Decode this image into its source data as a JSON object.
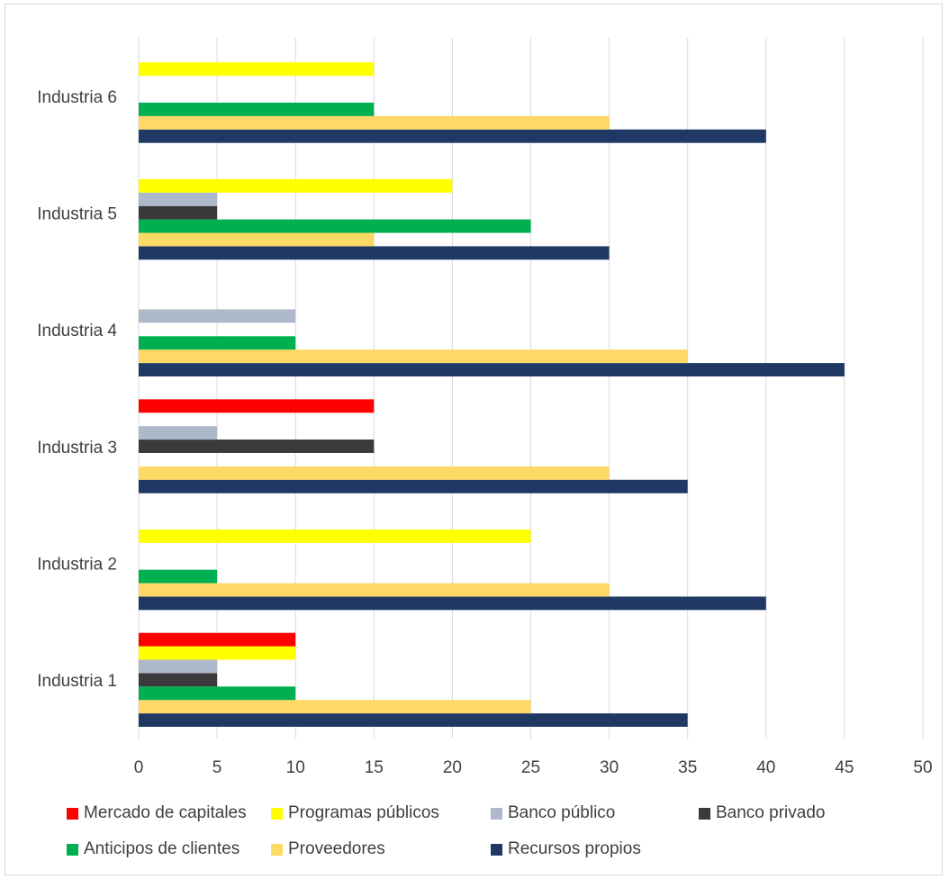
{
  "chart_data": {
    "type": "bar",
    "orientation": "horizontal",
    "categories": [
      "Industria 1",
      "Industria 2",
      "Industria 3",
      "Industria 4",
      "Industria 5",
      "Industria 6"
    ],
    "series": [
      {
        "name": "Recursos propios",
        "color": "#203864",
        "values": [
          35,
          40,
          35,
          45,
          30,
          40
        ]
      },
      {
        "name": "Proveedores",
        "color": "#FFD966",
        "values": [
          25,
          30,
          30,
          35,
          15,
          30
        ]
      },
      {
        "name": "Anticipos de clientes",
        "color": "#00B050",
        "values": [
          10,
          5,
          0,
          10,
          25,
          15
        ]
      },
      {
        "name": "Banco privado",
        "color": "#3A3A3A",
        "values": [
          5,
          0,
          15,
          0,
          5,
          0
        ]
      },
      {
        "name": "Banco público",
        "color": "#ADB9CA",
        "values": [
          5,
          0,
          5,
          10,
          5,
          0
        ]
      },
      {
        "name": "Programas públicos",
        "color": "#FFFF00",
        "values": [
          10,
          25,
          0,
          0,
          20,
          15
        ]
      },
      {
        "name": "Mercado de capitales",
        "color": "#FF0000",
        "values": [
          10,
          0,
          15,
          0,
          0,
          0
        ]
      }
    ],
    "xlim": [
      0,
      50
    ],
    "xticks": [
      "0",
      "5",
      "10",
      "15",
      "20",
      "25",
      "30",
      "35",
      "40",
      "45",
      "50"
    ],
    "grid": "vertical",
    "legend_position": "bottom",
    "legend_order": [
      "Mercado de capitales",
      "Programas públicos",
      "Banco público",
      "Banco privado",
      "Anticipos de clientes",
      "Proveedores",
      "Recursos propios"
    ]
  }
}
